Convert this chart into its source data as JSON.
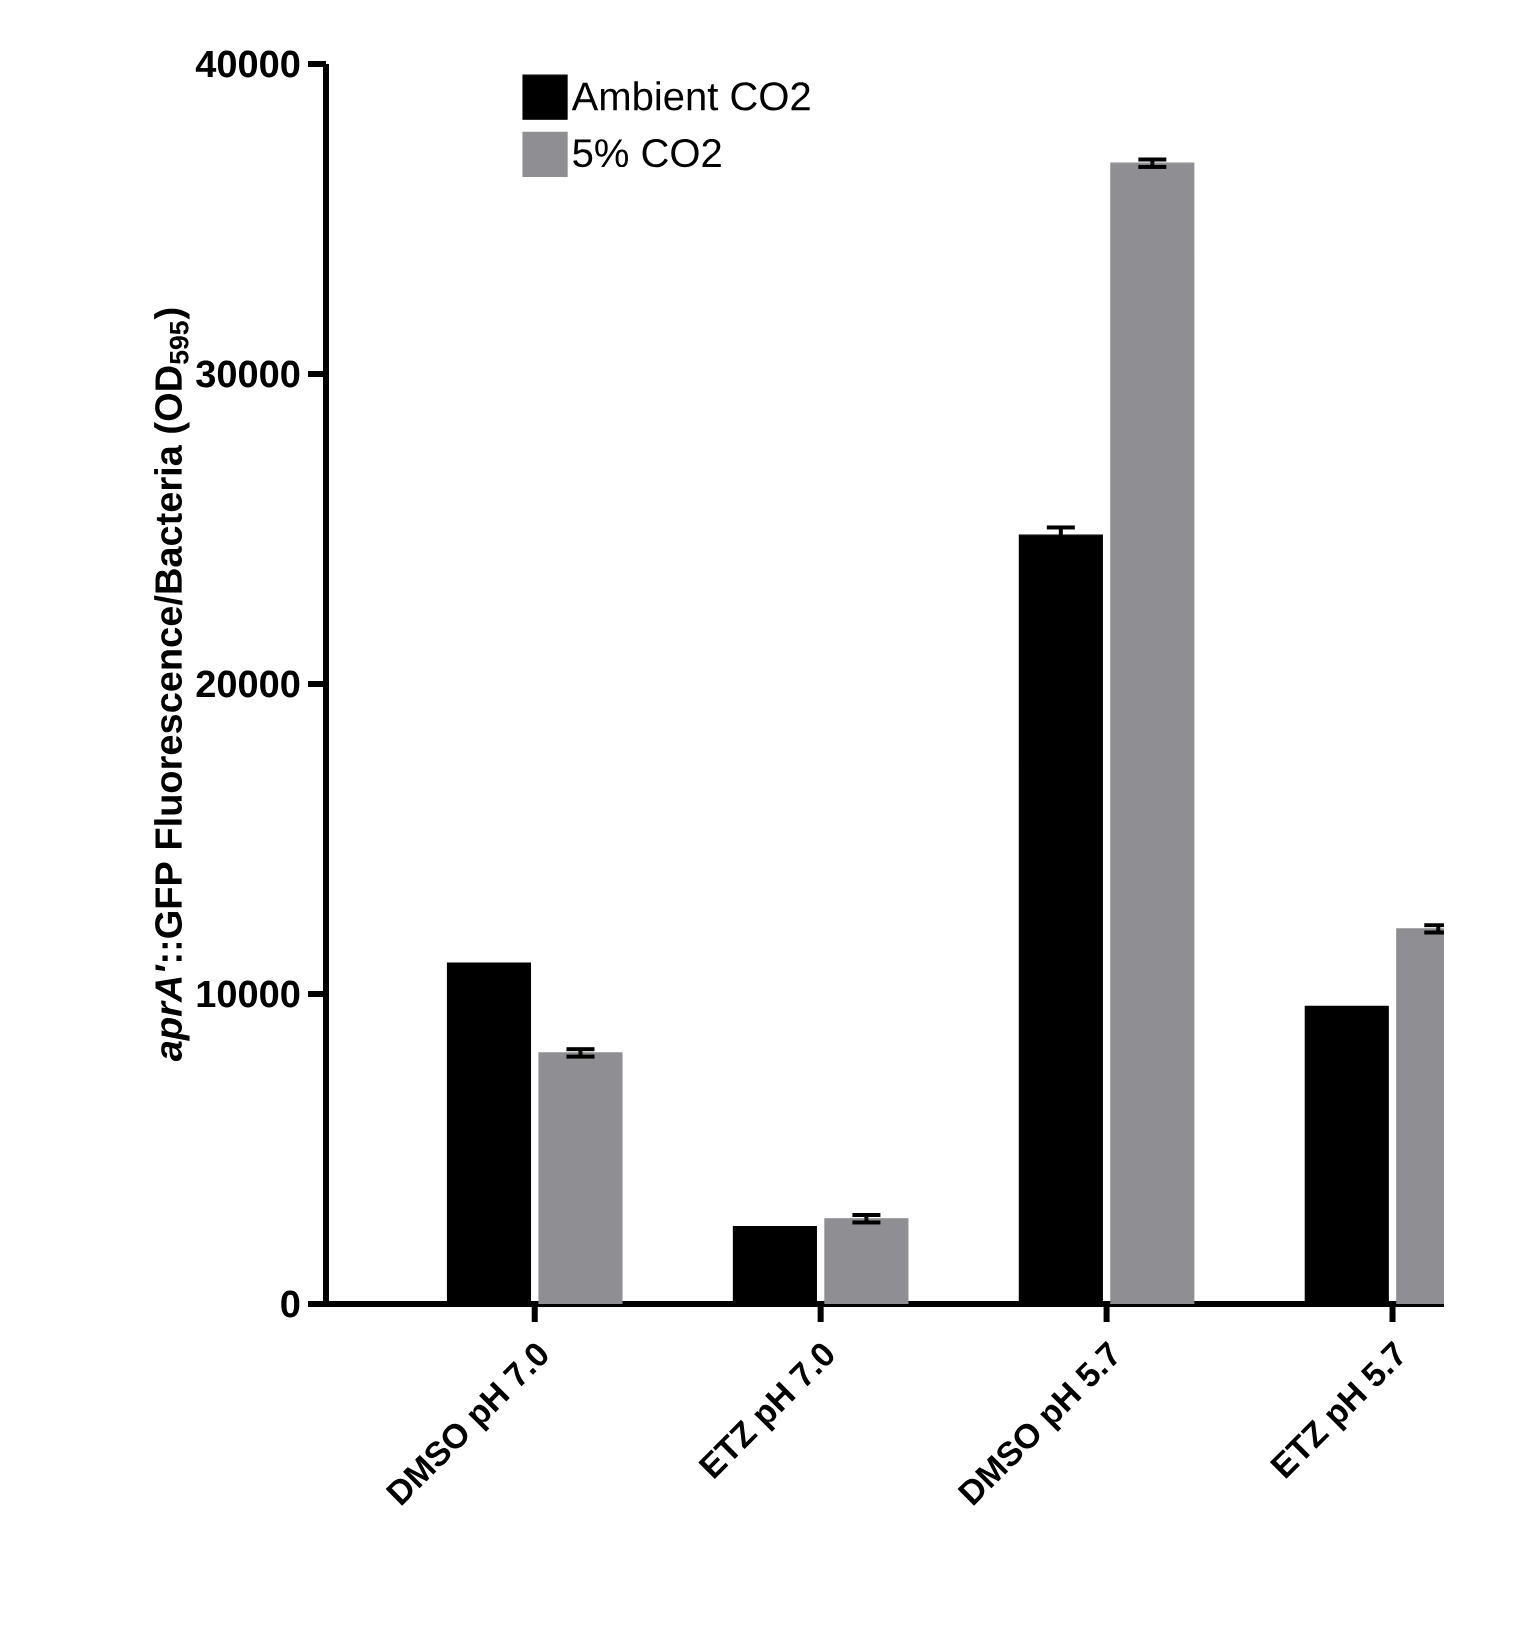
{
  "chart_data": {
    "type": "bar",
    "ylabel": "*aprA'*::GFP Fluorescence/Bacteria (OD$_{595}$)",
    "categories": [
      "DMSO pH 7.0",
      "ETZ pH 7.0",
      "DMSO pH 5.7",
      "ETZ pH 5.7"
    ],
    "series": [
      {
        "name": "Ambient CO2",
        "color": "#000000",
        "values": [
          11000,
          2500,
          24800,
          9600
        ],
        "errors": [
          null,
          null,
          250,
          null
        ]
      },
      {
        "name": "5% CO2",
        "color": "#8e8e93",
        "values": [
          8100,
          2750,
          36800,
          12100
        ],
        "errors": [
          120,
          120,
          120,
          120
        ]
      }
    ],
    "ylim": [
      0,
      40000
    ],
    "yticks": [
      0,
      10000,
      20000,
      30000,
      40000
    ],
    "legend": "top left"
  }
}
